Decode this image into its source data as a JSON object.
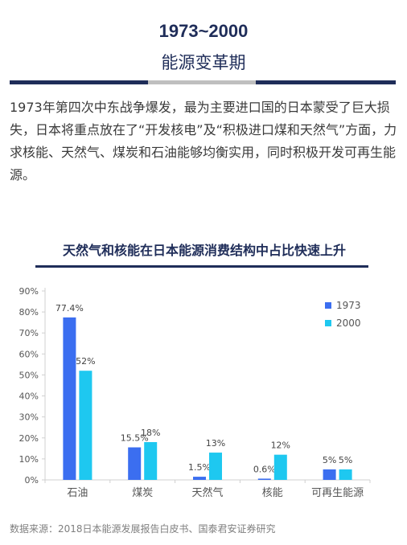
{
  "header": {
    "year_range": "1973~2000",
    "subtitle": "能源变革期"
  },
  "intro_text": "1973年第四次中东战争爆发，最为主要进口国的日本蒙受了巨大损失，日本将重点放在了“开发核电”及“积极进口煤和天然气”方面，力求核能、天然气、煤炭和石油能够均衡实用，同时积极开发可再生能源。",
  "chart_data": {
    "type": "bar",
    "title": "天然气和核能在日本能源消费结构中占比快速上升",
    "categories": [
      "石油",
      "煤炭",
      "天然气",
      "核能",
      "可再生能源"
    ],
    "series": [
      {
        "name": "1973",
        "values": [
          77.4,
          15.5,
          1.5,
          0.6,
          5
        ],
        "labels": [
          "77.4%",
          "15.5%",
          "1.5%",
          "0.6%",
          "5%"
        ],
        "color": "#3b6ef0"
      },
      {
        "name": "2000",
        "values": [
          52,
          18,
          13,
          12,
          5
        ],
        "labels": [
          "52%",
          "18%",
          "13%",
          "12%",
          "5%"
        ],
        "color": "#1ec8f0"
      }
    ],
    "yticks": [
      "0%",
      "10%",
      "20%",
      "30%",
      "40%",
      "50%",
      "60%",
      "70%",
      "80%",
      "90%"
    ],
    "ylim": [
      0,
      90
    ],
    "grid": false,
    "legend_position": "top-right"
  },
  "source": "数据来源：2018日本能源发展报告白皮书、国泰君安证券研究"
}
